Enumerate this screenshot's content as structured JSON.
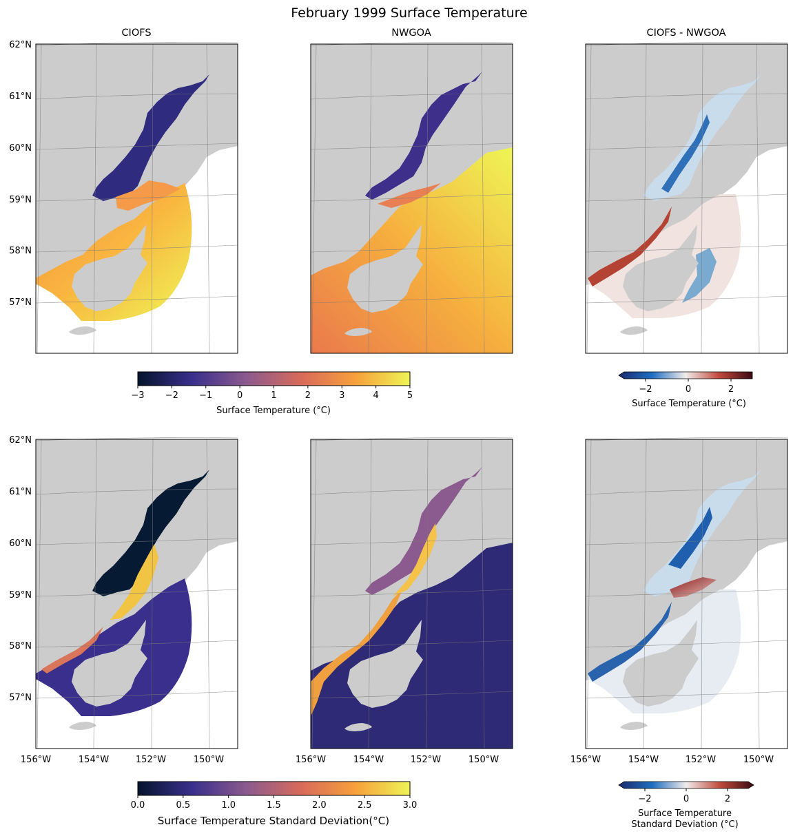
{
  "title": "February 1999 Surface Temperature",
  "panel_titles": [
    "CIOFS",
    "NWGOA",
    "CIOFS - NWGOA"
  ],
  "lat_labels": [
    "62°N",
    "61°N",
    "60°N",
    "59°N",
    "58°N",
    "57°N"
  ],
  "lon_labels": [
    "156°W",
    "154°W",
    "152°W",
    "150°W"
  ],
  "colorbars": {
    "temp": {
      "ticks": [
        "−3",
        "−2",
        "−1",
        "0",
        "1",
        "2",
        "3",
        "4",
        "5"
      ],
      "label": "Surface Temperature (°C)",
      "range": [
        -3,
        5
      ]
    },
    "temp_diff": {
      "ticks": [
        "−2",
        "0",
        "2"
      ],
      "label": "Surface Temperature (°C)",
      "range": [
        -3,
        3
      ]
    },
    "std": {
      "ticks": [
        "0.0",
        "0.5",
        "1.0",
        "1.5",
        "2.0",
        "2.5",
        "3.0"
      ],
      "label": "Surface Temperature Standard Deviation(°C)",
      "range": [
        0,
        3
      ]
    },
    "std_diff": {
      "ticks": [
        "−2",
        "0",
        "2"
      ],
      "label_line1": "Surface Temperature",
      "label_line2": "Standard Deviation (°C)",
      "range": [
        -3,
        3
      ]
    }
  },
  "colors": {
    "land": "#cccccc",
    "thermal": [
      "#04142c",
      "#3a2f8c",
      "#8c5a8e",
      "#d86a5a",
      "#f7a03c",
      "#eef556"
    ],
    "balance": [
      "#1a2a6c",
      "#1f6ec0",
      "#f1eceb",
      "#c04a3c",
      "#3c0912"
    ]
  }
}
